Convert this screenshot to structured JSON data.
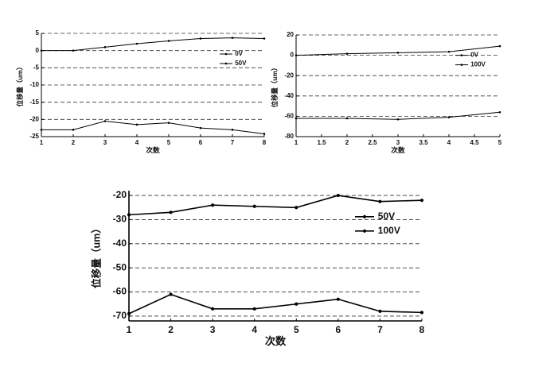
{
  "chart_data": [
    {
      "type": "line",
      "ylabel": "位移量（um）",
      "xlabel": "次数",
      "x": [
        1,
        2,
        3,
        4,
        5,
        6,
        7,
        8
      ],
      "series": [
        {
          "name": "0V",
          "color": "#000000",
          "values": [
            0,
            0,
            1,
            2,
            2.8,
            3.5,
            3.7,
            3.5
          ]
        },
        {
          "name": "50V",
          "color": "#000000",
          "values": [
            -23,
            -23,
            -20.5,
            -21.5,
            -21,
            -22.5,
            -23,
            -24.2
          ]
        }
      ],
      "xlim": [
        1,
        8
      ],
      "xticks": [
        1,
        2,
        3,
        4,
        5,
        6,
        7,
        8
      ],
      "ylim": [
        -25,
        5
      ],
      "yticks": [
        -25,
        -20,
        -15,
        -10,
        -5,
        0,
        5
      ],
      "grid": true,
      "legend": "upper right"
    },
    {
      "type": "line",
      "ylabel": "位移量（um）",
      "xlabel": "次数",
      "x": [
        1,
        2,
        3,
        4,
        5
      ],
      "series": [
        {
          "name": "0V",
          "color": "#000000",
          "values": [
            0,
            1.5,
            2.5,
            3.5,
            9
          ]
        },
        {
          "name": "100V",
          "color": "#000000",
          "values": [
            -62,
            -62,
            -63,
            -61,
            -56
          ]
        }
      ],
      "xlim": [
        1,
        5
      ],
      "xticks": [
        1,
        1.5,
        2,
        2.5,
        3,
        3.5,
        4,
        4.5,
        5
      ],
      "ylim": [
        -80,
        20
      ],
      "yticks": [
        -80,
        -60,
        -40,
        -20,
        0,
        20
      ],
      "grid": true,
      "legend": "upper right"
    },
    {
      "type": "line",
      "ylabel": "位移量（um）",
      "xlabel": "次数",
      "x": [
        1,
        2,
        3,
        4,
        5,
        6,
        7,
        8
      ],
      "series": [
        {
          "name": "50V",
          "color": "#000000",
          "values": [
            -28,
            -27,
            -24,
            -24.5,
            -25,
            -20,
            -22.5,
            -22
          ]
        },
        {
          "name": "100V",
          "color": "#000000",
          "values": [
            -69,
            -61,
            -67,
            -67,
            -65,
            -63,
            -68,
            -68.5
          ]
        }
      ],
      "xlim": [
        1,
        8
      ],
      "xticks": [
        1,
        2,
        3,
        4,
        5,
        6,
        7,
        8
      ],
      "ylim": [
        -72,
        -18
      ],
      "yticks": [
        -70,
        -60,
        -50,
        -40,
        -30,
        -20
      ],
      "grid": true,
      "legend": "upper right"
    }
  ]
}
